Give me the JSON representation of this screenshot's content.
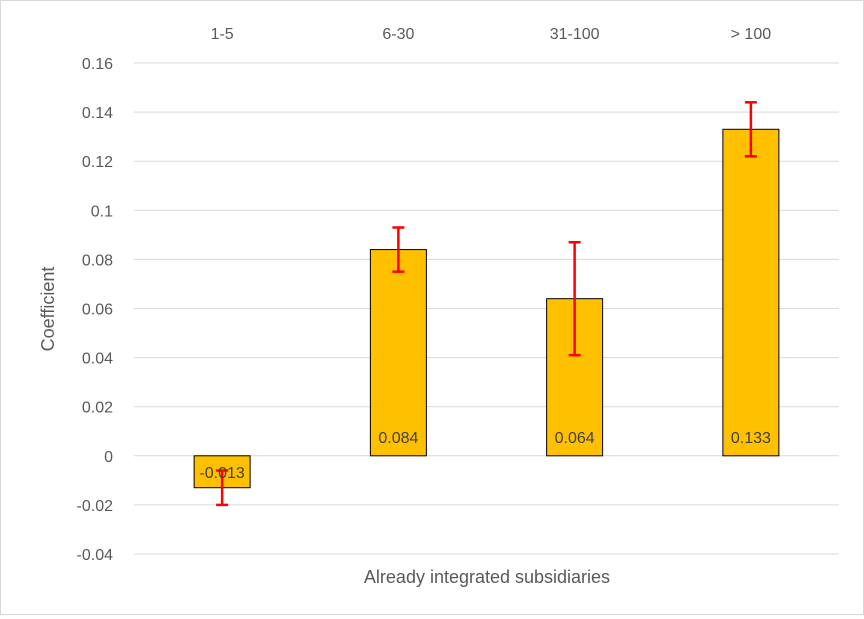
{
  "chart_data": {
    "type": "bar",
    "title": "",
    "xlabel": "Already integrated subsidiaries",
    "ylabel": "Coefficient",
    "categories": [
      "1-5",
      "6-30",
      "31-100",
      "> 100"
    ],
    "series": [
      {
        "name": "",
        "values": [
          -0.013,
          0.084,
          0.064,
          0.133
        ],
        "labels": [
          "-0.013",
          "0.084",
          "0.064",
          "0.133"
        ],
        "error_low": [
          -0.02,
          0.075,
          0.041,
          0.122
        ],
        "error_high": [
          -0.006,
          0.093,
          0.087,
          0.144
        ]
      }
    ],
    "ylim": [
      -0.04,
      0.16
    ],
    "yticks": [
      -0.04,
      -0.02,
      0,
      0.02,
      0.04,
      0.06,
      0.08,
      0.1,
      0.12,
      0.14,
      0.16
    ],
    "ytick_labels": [
      "-0.04",
      "-0.02",
      "0",
      "0.02",
      "0.04",
      "0.06",
      "0.08",
      "0.1",
      "0.12",
      "0.14",
      "0.16"
    ],
    "category_axis_position": "top",
    "grid": true,
    "legend": "none",
    "colors": {
      "bar": "#ffc000",
      "bar_outline": "#000000",
      "error_bar": "#ff0000",
      "grid": "#d9d9d9",
      "text": "#595959",
      "data_label": "#404040"
    }
  }
}
